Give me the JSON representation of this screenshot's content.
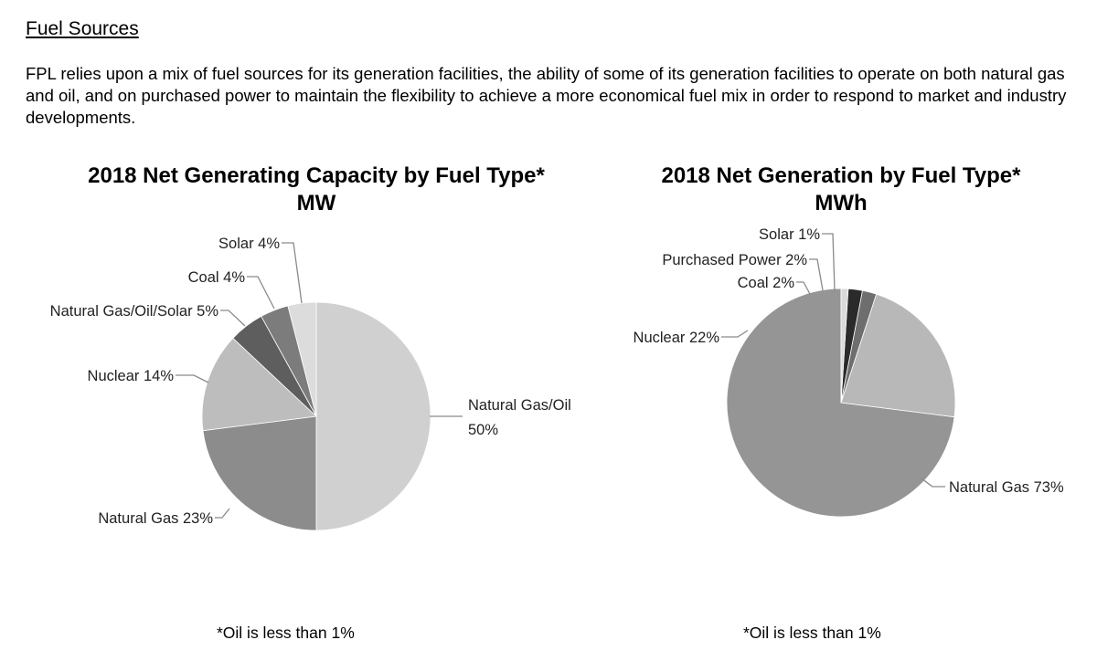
{
  "section": {
    "heading": "Fuel Sources",
    "paragraph": "FPL relies upon a mix of fuel sources for its generation facilities, the ability of some of its generation facilities to operate on both natural gas and oil, and on purchased power to maintain the flexibility to achieve a more economical fuel mix in order to respond to market and industry developments."
  },
  "chart_data": [
    {
      "type": "pie",
      "title": "2018 Net Generating Capacity by Fuel Type*",
      "subtitle": "MW",
      "footnote": "*Oil is less than 1%",
      "slices": [
        {
          "label": "Natural Gas/Oil",
          "value_label": "50%",
          "value": 50,
          "color": "#d0d0d0"
        },
        {
          "label": "Natural Gas 23%",
          "value": 23,
          "color": "#8c8c8c"
        },
        {
          "label": "Nuclear 14%",
          "value": 14,
          "color": "#bdbdbd"
        },
        {
          "label": "Natural Gas/Oil/Solar 5%",
          "value": 5,
          "color": "#5e5e5e"
        },
        {
          "label": "Coal 4%",
          "value": 4,
          "color": "#7c7c7c"
        },
        {
          "label": "Solar 4%",
          "value": 4,
          "color": "#dcdcdc"
        }
      ]
    },
    {
      "type": "pie",
      "title": "2018 Net Generation by Fuel Type*",
      "subtitle": "MWh",
      "footnote": "*Oil is less than 1%",
      "slices": [
        {
          "label": "Natural Gas 73%",
          "value": 73,
          "color": "#959595"
        },
        {
          "label": "Nuclear 22%",
          "value": 22,
          "color": "#b8b8b8"
        },
        {
          "label": "Coal 2%",
          "value": 2,
          "color": "#6e6e6e"
        },
        {
          "label": "Purchased Power 2%",
          "value": 2,
          "color": "#2a2a2a"
        },
        {
          "label": "Solar 1%",
          "value": 1,
          "color": "#dadada"
        }
      ]
    }
  ]
}
